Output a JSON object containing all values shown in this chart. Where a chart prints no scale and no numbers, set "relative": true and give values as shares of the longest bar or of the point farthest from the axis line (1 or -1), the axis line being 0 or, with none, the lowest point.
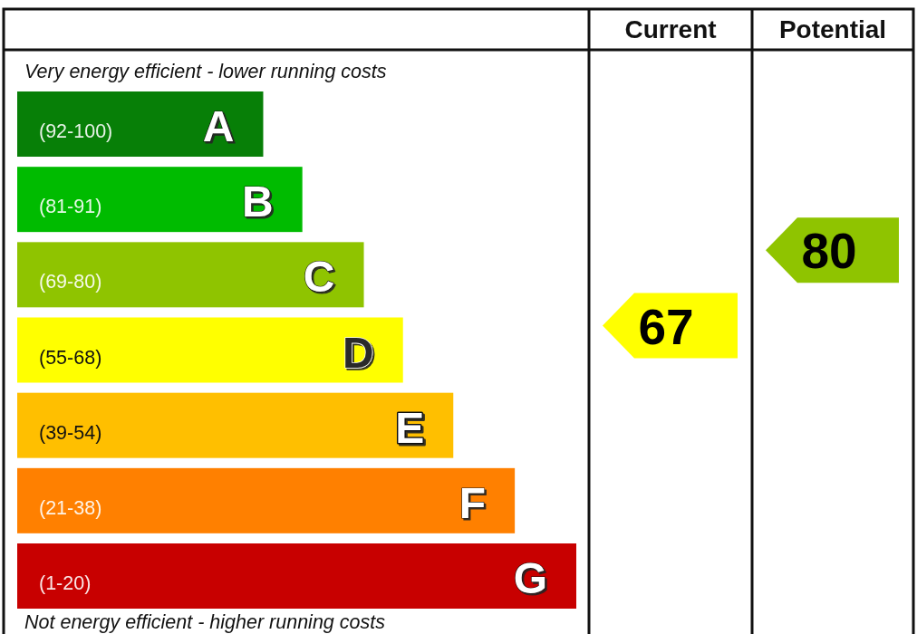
{
  "chart_data": [
    {
      "type": "bar",
      "orientation": "horizontal",
      "relative": true,
      "categories": [
        "A",
        "B",
        "C",
        "D",
        "E",
        "F",
        "G"
      ],
      "values": [
        0.44,
        0.51,
        0.62,
        0.69,
        0.78,
        0.89,
        1
      ],
      "colors": [
        "#077f07",
        "#00bb00",
        "#8fc400",
        "#ffff00",
        "#ffbf00",
        "#ff8000",
        "#c80000"
      ],
      "annotations": [
        "Very energy efficient - lower running costs",
        "(92-100)",
        "(81-91)",
        "(69-80)",
        "(55-68)",
        "(39-54)",
        "(21-38)",
        "(1-20)",
        "Not energy efficient - higher running costs"
      ]
    },
    {
      "type": "other",
      "title": "Current",
      "values": [
        null,
        null,
        null,
        67,
        null,
        null,
        null
      ],
      "color": "#ffff00",
      "data_labels": true
    },
    {
      "type": "other",
      "title": "Potential",
      "values": [
        null,
        null,
        80,
        null,
        null,
        null,
        null
      ],
      "color": "#8fc400",
      "data_labels": true
    }
  ]
}
